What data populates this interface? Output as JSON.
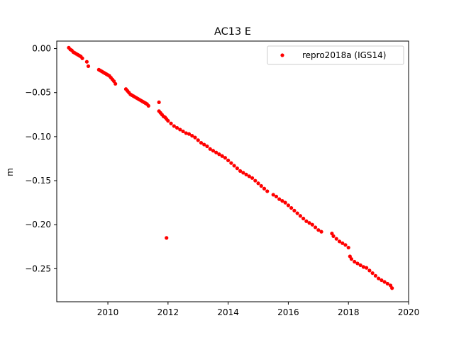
{
  "chart_data": {
    "type": "scatter",
    "title": "AC13 E",
    "xlabel": "",
    "ylabel": "m",
    "xlim": [
      2008.3,
      2020.0
    ],
    "ylim": [
      -0.2875,
      0.0085
    ],
    "xticks": [
      2010,
      2012,
      2014,
      2016,
      2018,
      2020
    ],
    "yticks": [
      0.0,
      -0.05,
      -0.1,
      -0.15,
      -0.2,
      -0.25
    ],
    "ytick_labels": [
      "0.00",
      "−0.05",
      "−0.10",
      "−0.15",
      "−0.20",
      "−0.25"
    ],
    "grid": false,
    "legend_position": "top-right",
    "series": [
      {
        "name": "repro2018a (IGS14)",
        "color": "#ff0000",
        "marker": "circle",
        "x": [
          2008.7,
          2008.75,
          2008.8,
          2008.85,
          2008.9,
          2008.95,
          2009.0,
          2009.05,
          2009.1,
          2009.15,
          2009.3,
          2009.35,
          2009.7,
          2009.75,
          2009.8,
          2009.85,
          2009.9,
          2009.95,
          2010.0,
          2010.05,
          2010.1,
          2010.15,
          2010.2,
          2010.25,
          2010.6,
          2010.65,
          2010.7,
          2010.75,
          2010.8,
          2010.85,
          2010.9,
          2010.95,
          2011.0,
          2011.05,
          2011.1,
          2011.15,
          2011.2,
          2011.25,
          2011.3,
          2011.35,
          2011.7,
          2011.75,
          2011.8,
          2011.85,
          2011.9,
          2011.95,
          2012.0,
          2012.1,
          2012.2,
          2012.3,
          2012.4,
          2012.5,
          2012.6,
          2012.7,
          2012.8,
          2012.9,
          2013.0,
          2013.1,
          2013.2,
          2013.3,
          2013.4,
          2013.5,
          2013.6,
          2013.7,
          2013.8,
          2013.9,
          2014.0,
          2014.1,
          2014.2,
          2014.3,
          2014.4,
          2014.5,
          2014.6,
          2014.7,
          2014.8,
          2014.9,
          2015.0,
          2015.1,
          2015.2,
          2015.3,
          2015.5,
          2015.6,
          2015.7,
          2015.8,
          2015.9,
          2016.0,
          2016.1,
          2016.2,
          2016.3,
          2016.4,
          2016.5,
          2016.6,
          2016.7,
          2016.8,
          2016.9,
          2017.0,
          2017.1,
          2017.45,
          2017.5,
          2017.6,
          2017.7,
          2017.8,
          2017.9,
          2018.0,
          2018.05,
          2018.1,
          2018.2,
          2018.3,
          2018.4,
          2018.5,
          2018.6,
          2018.7,
          2018.8,
          2018.9,
          2019.0,
          2019.1,
          2019.2,
          2019.3,
          2019.4,
          2019.45,
          2011.7,
          2011.95
        ],
        "y": [
          0.001,
          -0.001,
          -0.002,
          -0.004,
          -0.005,
          -0.006,
          -0.007,
          -0.008,
          -0.009,
          -0.011,
          -0.015,
          -0.02,
          -0.024,
          -0.025,
          -0.026,
          -0.027,
          -0.028,
          -0.029,
          -0.03,
          -0.031,
          -0.033,
          -0.035,
          -0.037,
          -0.04,
          -0.046,
          -0.048,
          -0.05,
          -0.052,
          -0.053,
          -0.054,
          -0.055,
          -0.056,
          -0.057,
          -0.058,
          -0.059,
          -0.06,
          -0.061,
          -0.062,
          -0.063,
          -0.065,
          -0.071,
          -0.073,
          -0.075,
          -0.077,
          -0.078,
          -0.08,
          -0.082,
          -0.085,
          -0.088,
          -0.09,
          -0.092,
          -0.094,
          -0.096,
          -0.097,
          -0.099,
          -0.101,
          -0.104,
          -0.107,
          -0.109,
          -0.111,
          -0.114,
          -0.116,
          -0.118,
          -0.12,
          -0.122,
          -0.124,
          -0.127,
          -0.13,
          -0.133,
          -0.136,
          -0.139,
          -0.141,
          -0.143,
          -0.145,
          -0.147,
          -0.15,
          -0.153,
          -0.156,
          -0.159,
          -0.162,
          -0.166,
          -0.168,
          -0.171,
          -0.173,
          -0.175,
          -0.178,
          -0.181,
          -0.184,
          -0.187,
          -0.19,
          -0.193,
          -0.196,
          -0.198,
          -0.2,
          -0.203,
          -0.206,
          -0.208,
          -0.21,
          -0.213,
          -0.216,
          -0.219,
          -0.221,
          -0.223,
          -0.226,
          -0.236,
          -0.239,
          -0.242,
          -0.244,
          -0.246,
          -0.248,
          -0.249,
          -0.252,
          -0.255,
          -0.258,
          -0.261,
          -0.263,
          -0.265,
          -0.267,
          -0.269,
          -0.272,
          -0.061,
          -0.215
        ]
      }
    ]
  }
}
